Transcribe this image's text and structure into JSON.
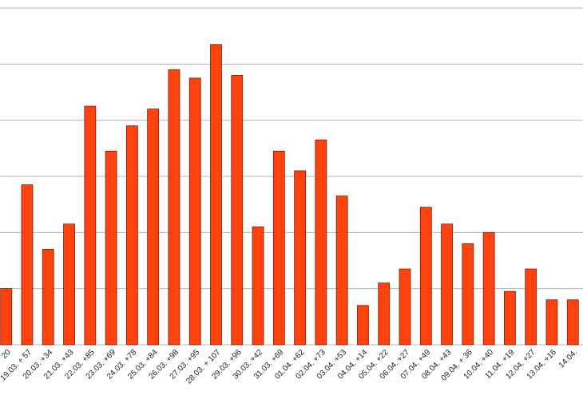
{
  "chart_data": {
    "type": "bar",
    "categories": [
      "20",
      "19.03. + 57",
      "20.03. +34",
      "21.03. +43",
      "22.03. +85",
      "23.03. +69",
      "24.03. +78",
      "25.03. +84",
      "26.03. +98",
      "27.03. +95",
      "28.03. + 107",
      "29.03. +96",
      "30.03. +42",
      "31.03. +69",
      "01.04. +62",
      "02.04. +73",
      "03.04. +53",
      "04.04. +14",
      "05.04. +22",
      "06.04. +27",
      "07.04. +49",
      "08.04. +43",
      "09.04. + 36",
      "10.04. +40",
      "11.04. +19",
      "12.04. +27",
      "13.04. +16",
      "14.04."
    ],
    "values": [
      20,
      57,
      34,
      43,
      85,
      69,
      78,
      84,
      98,
      95,
      107,
      96,
      42,
      69,
      62,
      73,
      53,
      14,
      22,
      27,
      49,
      43,
      36,
      40,
      19,
      27,
      16,
      16
    ],
    "color": "#ff420e",
    "ylim": [
      0,
      120
    ],
    "yticks": [
      0,
      20,
      40,
      60,
      80,
      100,
      120
    ],
    "grid": true
  }
}
